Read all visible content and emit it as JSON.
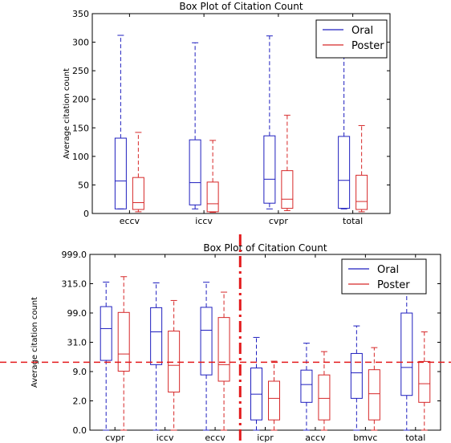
{
  "colors": {
    "oral": "#1f1fbf",
    "poster": "#d62728",
    "annotation": "#e31a1c"
  },
  "chart_data": [
    {
      "type": "box",
      "title": "Box Plot of Citation Count",
      "ylabel": "Average citation count",
      "xlabel": "",
      "yscale": "linear",
      "ylim": [
        0,
        350
      ],
      "yticks": [
        "0",
        "50",
        "100",
        "150",
        "200",
        "250",
        "300",
        "350"
      ],
      "categories": [
        "eccv",
        "iccv",
        "cvpr",
        "total"
      ],
      "legend": {
        "position": "top-right",
        "entries": [
          "Oral",
          "Poster"
        ]
      },
      "series": [
        {
          "name": "Oral",
          "color": "#1f1fbf",
          "boxes": [
            {
              "min": 8,
              "q1": 8,
              "median": 57,
              "q3": 132,
              "max": 312
            },
            {
              "min": 8,
              "q1": 15,
              "median": 54,
              "q3": 129,
              "max": 299
            },
            {
              "min": 8,
              "q1": 18,
              "median": 60,
              "q3": 136,
              "max": 311
            },
            {
              "min": 8,
              "q1": 9,
              "median": 58,
              "q3": 135,
              "max": 311
            }
          ]
        },
        {
          "name": "Poster",
          "color": "#d62728",
          "boxes": [
            {
              "min": 3,
              "q1": 7,
              "median": 19,
              "q3": 63,
              "max": 142
            },
            {
              "min": 2,
              "q1": 3,
              "median": 17,
              "q3": 55,
              "max": 128
            },
            {
              "min": 5,
              "q1": 9,
              "median": 25,
              "q3": 75,
              "max": 172
            },
            {
              "min": 3,
              "q1": 7,
              "median": 21,
              "q3": 67,
              "max": 154
            }
          ]
        }
      ]
    },
    {
      "type": "box",
      "title": "Box Plot of Citation Count",
      "ylabel": "Average citation count",
      "xlabel": "",
      "yscale": "log-like (ticks evenly spaced)",
      "ylim": [
        0.0,
        999.0
      ],
      "yticks": [
        "0.0",
        "2.0",
        "9.0",
        "31.0",
        "99.0",
        "315.0",
        "999.0"
      ],
      "categories": [
        "cvpr",
        "iccv",
        "eccv",
        "icpr",
        "accv",
        "bmvc",
        "total"
      ],
      "legend": {
        "position": "top-right",
        "entries": [
          "Oral",
          "Poster"
        ]
      },
      "series": [
        {
          "name": "Oral",
          "color": "#1f1fbf",
          "boxes": [
            {
              "min": 0.0,
              "q1": 17.4,
              "median": 62.8,
              "q3": 146.0,
              "max": 351.9
            },
            {
              "min": 0.0,
              "q1": 14.2,
              "median": 55.2,
              "q3": 138.2,
              "max": 334.2
            },
            {
              "min": 0.0,
              "q1": 8.2,
              "median": 59.0,
              "q3": 140.9,
              "max": 348.7
            },
            {
              "min": 0.0,
              "q1": 0.7,
              "median": 3.6,
              "q3": 11.7,
              "max": 42.3
            },
            {
              "min": 0.0,
              "q1": 1.9,
              "median": 5.9,
              "q3": 10.1,
              "max": 30.3
            },
            {
              "min": 0.0,
              "q1": 2.6,
              "median": 8.7,
              "q3": 22.6,
              "max": 69.0
            },
            {
              "min": 0.0,
              "q1": 3.3,
              "median": 12.1,
              "q3": 98.9,
              "max": 488.4
            }
          ]
        },
        {
          "name": "Poster",
          "color": "#d62728",
          "boxes": [
            {
              "min": 0.0,
              "q1": 9.3,
              "median": 22.2,
              "q3": 103.1,
              "max": 479.1
            },
            {
              "min": 0.0,
              "q1": 4.1,
              "median": 13.7,
              "q3": 57.0,
              "max": 191.2
            },
            {
              "min": 0.0,
              "q1": 6.7,
              "median": 14.2,
              "q3": 88.5,
              "max": 252.6
            },
            {
              "min": 0.0,
              "q1": 0.7,
              "median": 2.6,
              "q3": 6.7,
              "max": 16.8
            },
            {
              "min": 0.0,
              "q1": 0.7,
              "median": 2.6,
              "q3": 8.2,
              "max": 24.0
            },
            {
              "min": 0.0,
              "q1": 0.7,
              "median": 3.7,
              "q3": 10.4,
              "max": 27.0
            },
            {
              "min": 0.0,
              "q1": 1.9,
              "median": 6.1,
              "q3": 16.6,
              "max": 55.1
            }
          ]
        }
      ],
      "annotations": [
        {
          "type": "reference-line",
          "orientation": "horizontal",
          "style": "dashed",
          "color": "#e31a1c",
          "value": 16
        },
        {
          "type": "separator-line",
          "orientation": "vertical",
          "style": "dash-dot",
          "color": "#e31a1c",
          "between": [
            "eccv",
            "icpr"
          ]
        }
      ]
    }
  ]
}
